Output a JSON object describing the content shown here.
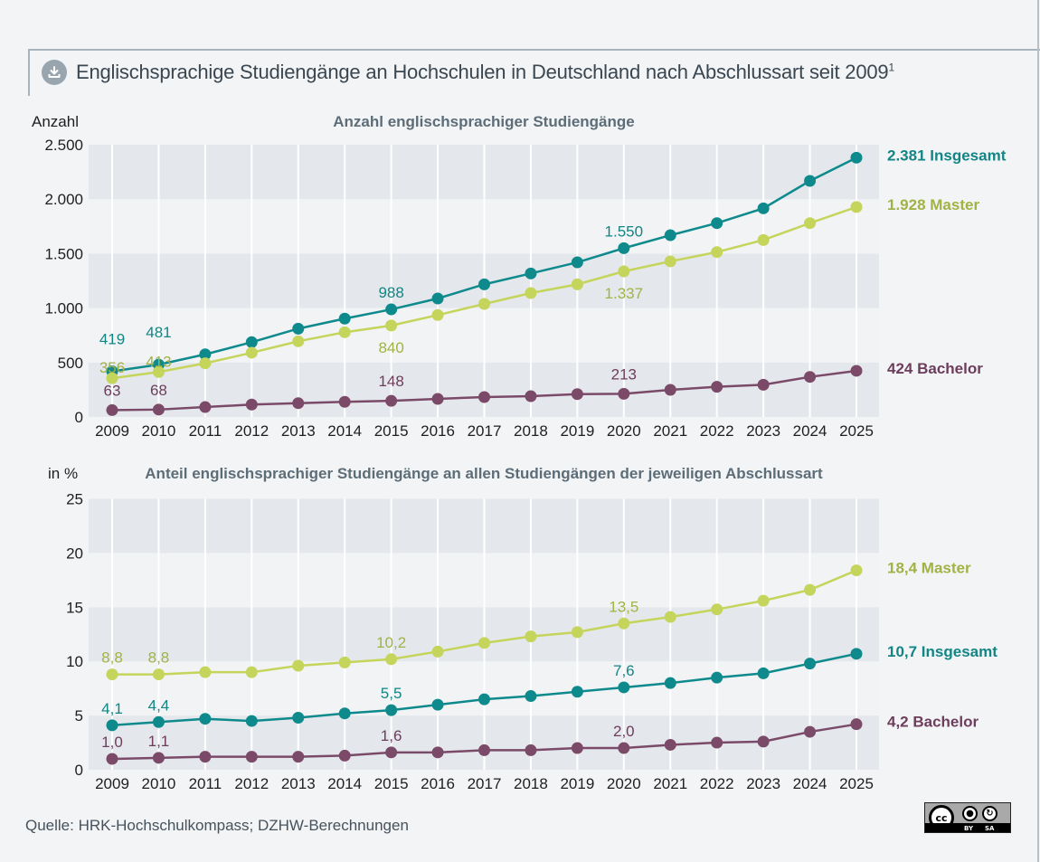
{
  "header": {
    "title": "Englischsprachige Studiengänge an Hochschulen in Deutschland nach Abschlussart seit 2009",
    "footnote_marker": "1",
    "download_icon": "download-icon"
  },
  "colors": {
    "insgesamt": "#0e8a8c",
    "master": "#c5d45a",
    "bachelor": "#7a4a68",
    "insgesamt_text": "#138585",
    "master_text": "#a2b245",
    "bachelor_text": "#6d3d5c",
    "band_dark": "#e4e8ec",
    "band_light": "#f1f3f5"
  },
  "footer": {
    "source": "Quelle: HRK-Hochschulkompass; DZHW-Berechnungen",
    "license": {
      "main": "cc",
      "by": "BY",
      "sa": "SA"
    }
  },
  "chart_data": [
    {
      "type": "line",
      "title": "Anzahl englischsprachiger Studiengänge",
      "ylabel": "Anzahl",
      "xlabel": "",
      "ylim": [
        0,
        2500
      ],
      "yticks": [
        0,
        500,
        1000,
        1500,
        2000,
        2500
      ],
      "ytick_labels": [
        "0",
        "500",
        "1.000",
        "1.500",
        "2.000",
        "2.500"
      ],
      "categories": [
        "2009",
        "2010",
        "2011",
        "2012",
        "2013",
        "2014",
        "2015",
        "2016",
        "2017",
        "2018",
        "2019",
        "2020",
        "2021",
        "2022",
        "2023",
        "2024",
        "2025"
      ],
      "grid": "alternating horizontal bands, vertical lines per year",
      "series": [
        {
          "name": "Insgesamt",
          "key": "insgesamt",
          "values": [
            419,
            481,
            575,
            687,
            811,
            903,
            988,
            1088,
            1218,
            1318,
            1420,
            1550,
            1669,
            1780,
            1916,
            2168,
            2381
          ],
          "labels": {
            "0": "419",
            "1": "481",
            "6": "988",
            "11": "1.550"
          },
          "label_pos": "above",
          "end_label": "2.381 Insgesamt"
        },
        {
          "name": "Master",
          "key": "master",
          "values": [
            356,
            413,
            493,
            590,
            695,
            778,
            840,
            936,
            1038,
            1138,
            1218,
            1337,
            1429,
            1514,
            1625,
            1780,
            1928
          ],
          "labels": {
            "0": "356",
            "1": "413",
            "6": "840",
            "11": "1.337"
          },
          "label_pos": "mixed",
          "end_label": "1.928 Master"
        },
        {
          "name": "Bachelor",
          "key": "bachelor",
          "values": [
            63,
            68,
            91,
            114,
            127,
            139,
            148,
            166,
            183,
            191,
            210,
            213,
            249,
            277,
            296,
            368,
            424
          ],
          "labels": {
            "0": "63",
            "1": "68",
            "6": "148",
            "11": "213"
          },
          "label_pos": "above",
          "end_label": "424 Bachelor"
        }
      ]
    },
    {
      "type": "line",
      "title": "Anteil englischsprachiger Studiengänge an allen Studiengängen der jeweiligen Abschlussart",
      "ylabel": "in %",
      "xlabel": "",
      "ylim": [
        0,
        25
      ],
      "yticks": [
        0,
        5,
        10,
        15,
        20,
        25
      ],
      "ytick_labels": [
        "0",
        "5",
        "10",
        "15",
        "20",
        "25"
      ],
      "categories": [
        "2009",
        "2010",
        "2011",
        "2012",
        "2013",
        "2014",
        "2015",
        "2016",
        "2017",
        "2018",
        "2019",
        "2020",
        "2021",
        "2022",
        "2023",
        "2024",
        "2025"
      ],
      "grid": "alternating horizontal bands, vertical lines per year",
      "series": [
        {
          "name": "Master",
          "key": "master",
          "values": [
            8.8,
            8.8,
            9.0,
            9.0,
            9.6,
            9.9,
            10.2,
            10.9,
            11.7,
            12.3,
            12.7,
            13.5,
            14.1,
            14.8,
            15.6,
            16.6,
            18.4
          ],
          "labels": {
            "0": "8,8",
            "1": "8,8",
            "6": "10,2",
            "11": "13,5"
          },
          "end_label": "18,4 Master"
        },
        {
          "name": "Insgesamt",
          "key": "insgesamt",
          "values": [
            4.1,
            4.4,
            4.7,
            4.5,
            4.8,
            5.2,
            5.5,
            6.0,
            6.5,
            6.8,
            7.2,
            7.6,
            8.0,
            8.5,
            8.9,
            9.8,
            10.7
          ],
          "labels": {
            "0": "4,1",
            "1": "4,4",
            "6": "5,5",
            "11": "7,6"
          },
          "end_label": "10,7 Insgesamt"
        },
        {
          "name": "Bachelor",
          "key": "bachelor",
          "values": [
            1.0,
            1.1,
            1.2,
            1.2,
            1.2,
            1.3,
            1.6,
            1.6,
            1.8,
            1.8,
            2.0,
            2.0,
            2.3,
            2.5,
            2.6,
            3.5,
            4.2
          ],
          "labels": {
            "0": "1,0",
            "1": "1,1",
            "6": "1,6",
            "11": "2,0"
          },
          "end_label": "4,2 Bachelor"
        }
      ]
    }
  ]
}
